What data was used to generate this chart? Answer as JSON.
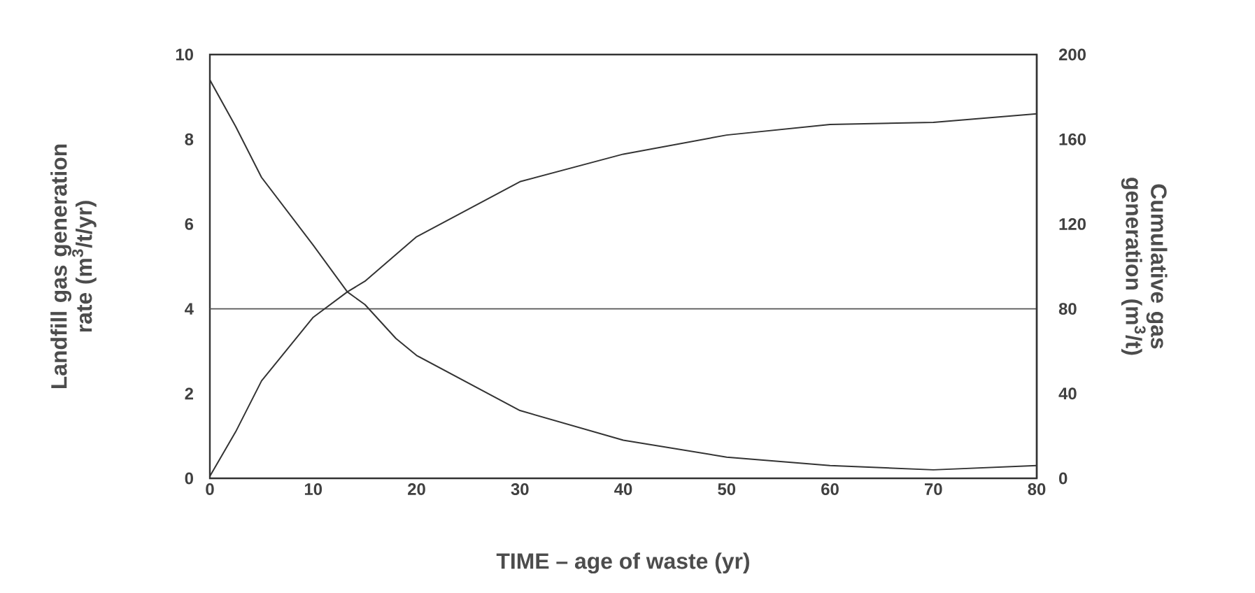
{
  "chart_data": {
    "type": "line",
    "xlabel": "TIME – age of waste (yr)",
    "ylabel": "Landfill gas generation rate (m$^{3}$/t/yr)",
    "y2label": "Cumulative gas generation (m$^{3}$/t)",
    "xlim": [
      0,
      80
    ],
    "xticks": [
      0,
      10,
      20,
      30,
      40,
      50,
      60,
      70,
      80
    ],
    "ylim": [
      0,
      10
    ],
    "yticks": [
      0,
      2,
      4,
      6,
      8,
      10
    ],
    "y2lim": [
      0,
      200
    ],
    "y2ticks": [
      0,
      40,
      80,
      120,
      160,
      200
    ],
    "ref_lines": [
      {
        "axis": "y",
        "value": 4,
        "color": "#555555"
      }
    ],
    "series": [
      {
        "color": "#333333",
        "x": [
          0,
          2.5,
          5,
          10,
          13.3,
          15,
          18,
          20,
          30,
          40,
          50,
          60,
          70,
          80
        ],
        "values": [
          9.4,
          8.3,
          7.1,
          5.5,
          4.4,
          4.1,
          3.3,
          2.9,
          1.6,
          0.9,
          0.5,
          0.3,
          0.2,
          0.3
        ]
      },
      {
        "color": "#333333",
        "axis": "y2",
        "x": [
          0,
          2.5,
          5,
          10,
          13.3,
          15,
          20,
          30,
          40,
          50,
          60,
          70,
          80
        ],
        "values": [
          1,
          22,
          46,
          76,
          88,
          93,
          114,
          140,
          153,
          162,
          167,
          168,
          172
        ]
      }
    ]
  }
}
